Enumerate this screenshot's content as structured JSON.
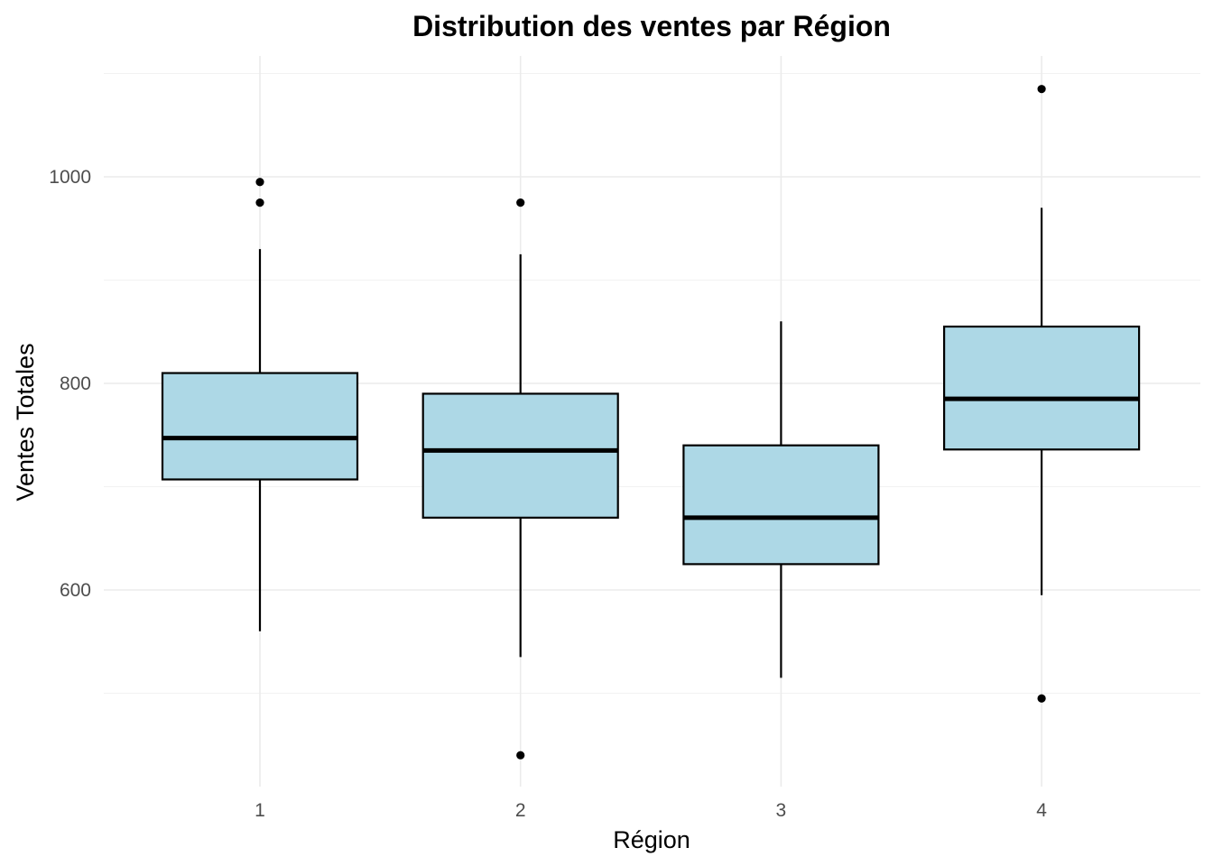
{
  "chart_data": {
    "type": "boxplot",
    "title": "Distribution des ventes par Région",
    "xlabel": "Région",
    "ylabel": "Ventes Totales",
    "categories": [
      "1",
      "2",
      "3",
      "4"
    ],
    "ylim": [
      420,
      1120
    ],
    "y_ticks": [
      600,
      800,
      1000
    ],
    "y_minor_ticks": [
      500,
      700,
      900,
      1100
    ],
    "grid": true,
    "box_fill": "#add8e6",
    "box_stroke": "#000000",
    "series": [
      {
        "category": "1",
        "min": 560,
        "q1": 707,
        "median": 747,
        "q3": 810,
        "max": 930,
        "outliers": [
          975,
          995
        ]
      },
      {
        "category": "2",
        "min": 535,
        "q1": 670,
        "median": 735,
        "q3": 790,
        "max": 925,
        "outliers": [
          975,
          440
        ]
      },
      {
        "category": "3",
        "min": 515,
        "q1": 625,
        "median": 670,
        "q3": 740,
        "max": 860,
        "outliers": []
      },
      {
        "category": "4",
        "min": 595,
        "q1": 736,
        "median": 785,
        "q3": 855,
        "max": 970,
        "outliers": [
          1085,
          495
        ]
      }
    ]
  }
}
